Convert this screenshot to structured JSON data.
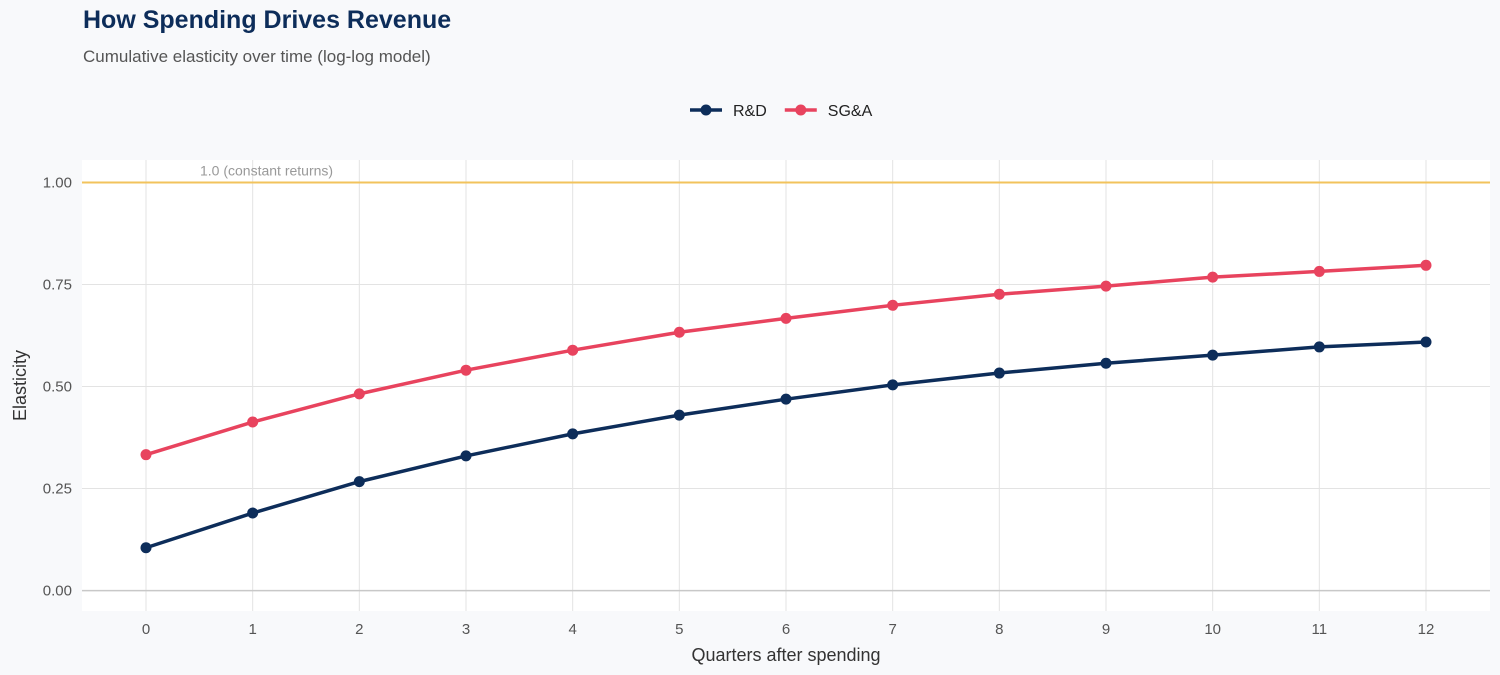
{
  "chart_data": {
    "type": "line",
    "title": "How Spending Drives Revenue",
    "subtitle": "Cumulative elasticity over time (log-log model)",
    "xlabel": "Quarters after spending",
    "ylabel": "Elasticity",
    "x": [
      0,
      1,
      2,
      3,
      4,
      5,
      6,
      7,
      8,
      9,
      10,
      11,
      12
    ],
    "xlim": [
      -0.6,
      12.6
    ],
    "ylim": [
      -0.05,
      1.055
    ],
    "yticks": [
      0,
      0.25,
      0.5,
      0.75,
      1.0
    ],
    "ytick_labels": [
      "0.00",
      "0.25",
      "0.50",
      "0.75",
      "1.00"
    ],
    "grid": true,
    "legend_position": "top",
    "reference_line": {
      "y": 1.0,
      "label": "1.0 (constant returns)",
      "color": "#f2c35c"
    },
    "series": [
      {
        "name": "R&D",
        "color": "#0d2d5a",
        "values": [
          0.105,
          0.19,
          0.267,
          0.33,
          0.384,
          0.43,
          0.469,
          0.504,
          0.533,
          0.557,
          0.577,
          0.597,
          0.609
        ]
      },
      {
        "name": "SG&A",
        "color": "#e8435e",
        "values": [
          0.333,
          0.413,
          0.482,
          0.54,
          0.589,
          0.633,
          0.667,
          0.699,
          0.726,
          0.746,
          0.768,
          0.782,
          0.797
        ]
      }
    ]
  }
}
